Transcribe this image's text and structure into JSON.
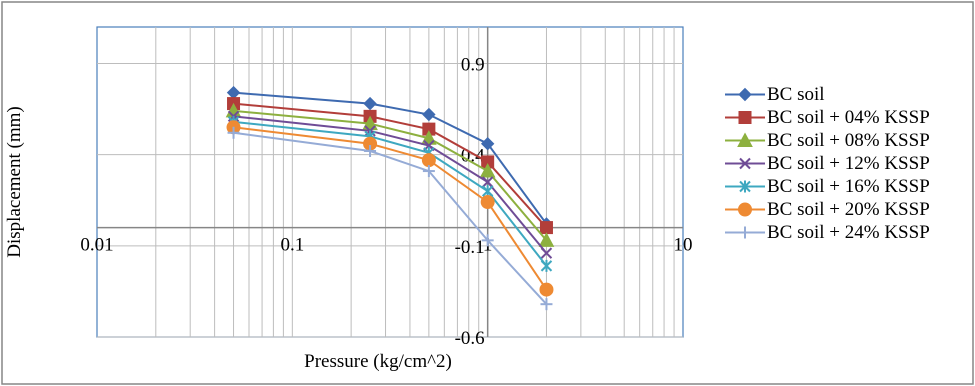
{
  "chart_data": {
    "type": "line",
    "title": "",
    "xlabel": "Pressure (kg/cm^2)",
    "ylabel": "Displacement (mm)",
    "xscale": "log",
    "xlim": [
      0.01,
      10
    ],
    "ylim": [
      -0.6,
      1.1
    ],
    "x_ticks": [
      "0.01",
      "0.1",
      "1",
      "10"
    ],
    "y_ticks": [
      "0.9",
      "0.4",
      "-0.1",
      "-0.6"
    ],
    "y_tick_values": [
      0.9,
      0.4,
      -0.1,
      -0.6
    ],
    "x_axis_crosses_y": 0,
    "y_axis_crosses_x": 1,
    "grid": true,
    "legend_position": "right",
    "x": [
      0.05,
      0.25,
      0.5,
      1,
      2
    ],
    "series": [
      {
        "name": "BC soil",
        "color": "#3E6AB0",
        "marker": "diamond",
        "values": [
          0.74,
          0.68,
          0.62,
          0.46,
          0.02
        ]
      },
      {
        "name": "BC soil + 04% KSSP",
        "color": "#B23E3A",
        "marker": "square",
        "values": [
          0.68,
          0.61,
          0.54,
          0.36,
          0.0
        ]
      },
      {
        "name": "BC soil + 08% KSSP",
        "color": "#8DB03F",
        "marker": "triangle",
        "values": [
          0.64,
          0.57,
          0.49,
          0.31,
          -0.07
        ]
      },
      {
        "name": "BC soil + 12% KSSP",
        "color": "#6F4C96",
        "marker": "x",
        "values": [
          0.61,
          0.53,
          0.45,
          0.25,
          -0.14
        ]
      },
      {
        "name": "BC soil + 16% KSSP",
        "color": "#3EA8C0",
        "marker": "asterisk",
        "values": [
          0.58,
          0.5,
          0.41,
          0.2,
          -0.21
        ]
      },
      {
        "name": "BC soil + 20% KSSP",
        "color": "#EE8A33",
        "marker": "circle",
        "values": [
          0.55,
          0.46,
          0.37,
          0.14,
          -0.34
        ]
      },
      {
        "name": "BC soil + 24% KSSP",
        "color": "#95ABD6",
        "marker": "plus",
        "values": [
          0.52,
          0.42,
          0.31,
          -0.07,
          -0.42
        ]
      }
    ]
  }
}
